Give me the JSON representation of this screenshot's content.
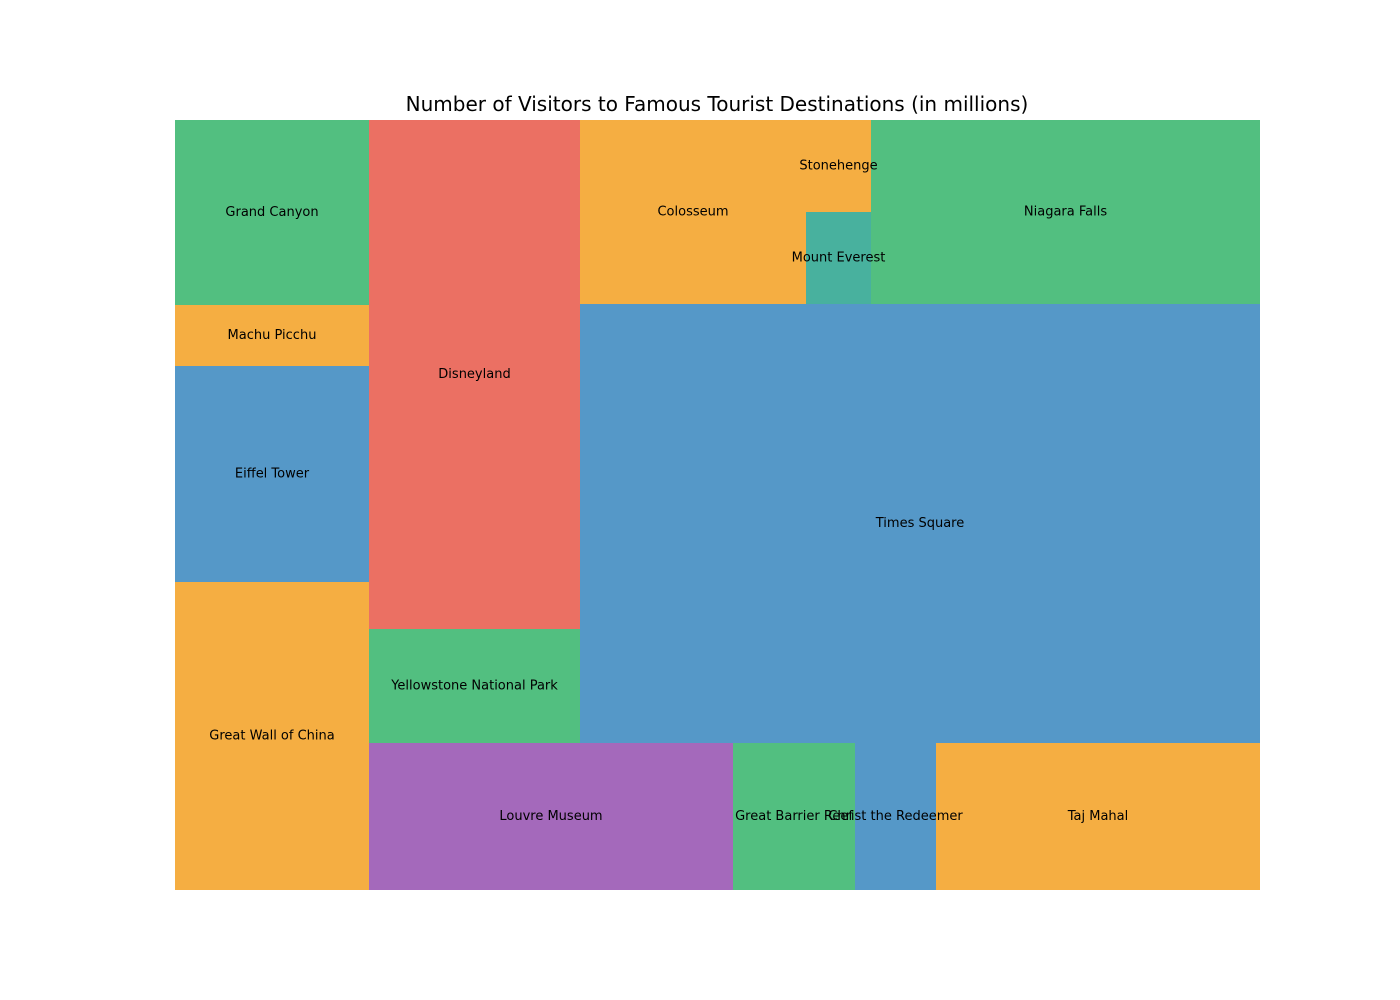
{
  "chart_data": {
    "type": "treemap",
    "title": "Number of Visitors to Famous Tourist Destinations (in millions)",
    "tiles": [
      {
        "name": "Grand Canyon",
        "value": 6,
        "color": "#52bf80"
      },
      {
        "name": "Machu Picchu",
        "value": 2,
        "color": "#f5ae42"
      },
      {
        "name": "Eiffel Tower",
        "value": 7,
        "color": "#5598c8"
      },
      {
        "name": "Great Wall of China",
        "value": 10,
        "color": "#f5ae42"
      },
      {
        "name": "Disneyland",
        "value": 18.5,
        "color": "#eb7063"
      },
      {
        "name": "Yellowstone National Park",
        "value": 4.2,
        "color": "#52bf80"
      },
      {
        "name": "Colosseum",
        "value": 7.2,
        "color": "#f5ae42"
      },
      {
        "name": "Stonehenge",
        "value": 1.3,
        "color": "#f5ae42"
      },
      {
        "name": "Mount Everest",
        "value": 1.3,
        "color": "#48b19e"
      },
      {
        "name": "Niagara Falls",
        "value": 12.3,
        "color": "#52bf80"
      },
      {
        "name": "Times Square",
        "value": 50,
        "color": "#5598c8"
      },
      {
        "name": "Louvre Museum",
        "value": 9.2,
        "color": "#a469bb"
      },
      {
        "name": "Great Barrier Reef",
        "value": 3.1,
        "color": "#52bf80"
      },
      {
        "name": "Christ the Redeemer",
        "value": 2,
        "color": "#5598c8"
      },
      {
        "name": "Taj Mahal",
        "value": 8.2,
        "color": "#f5ae42"
      }
    ]
  }
}
